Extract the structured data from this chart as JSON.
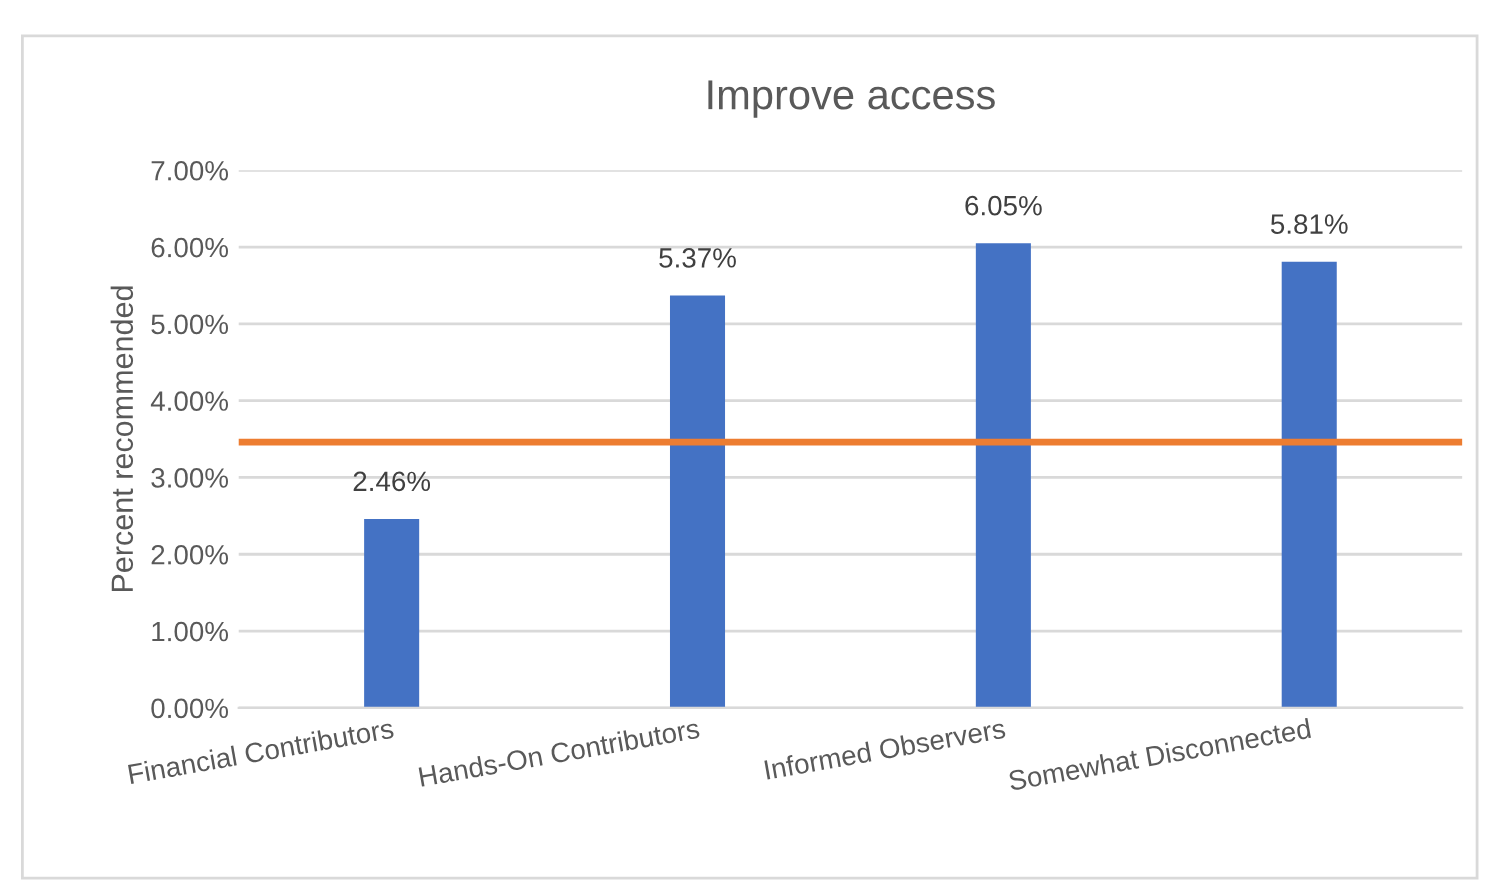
{
  "chart_data": {
    "type": "bar",
    "title": "Improve access",
    "ylabel": "Percent recommended",
    "categories": [
      "Financial Contributors",
      "Hands-On Contributors",
      "Informed Observers",
      "Somewhat Disconnected"
    ],
    "values": [
      2.46,
      5.37,
      6.05,
      5.81
    ],
    "color": "#4472c4",
    "value_labels": [
      "2.46%",
      "5.37%",
      "6.05%",
      "5.81%"
    ],
    "ylim": [
      0,
      7
    ],
    "yticks": [
      {
        "value": 0,
        "label": "0.00%"
      },
      {
        "value": 1,
        "label": "1.00%"
      },
      {
        "value": 2,
        "label": "2.00%"
      },
      {
        "value": 3,
        "label": "3.00%"
      },
      {
        "value": 4,
        "label": "4.00%"
      },
      {
        "value": 5,
        "label": "5.00%"
      },
      {
        "value": 6,
        "label": "6.00%"
      },
      {
        "value": 7,
        "label": "7.00%"
      }
    ],
    "ref_lines": [
      {
        "axis": "y",
        "value": 3.46,
        "color": "#ed7d31",
        "line_style": "solid"
      }
    ],
    "grid": "y",
    "legend": false
  }
}
